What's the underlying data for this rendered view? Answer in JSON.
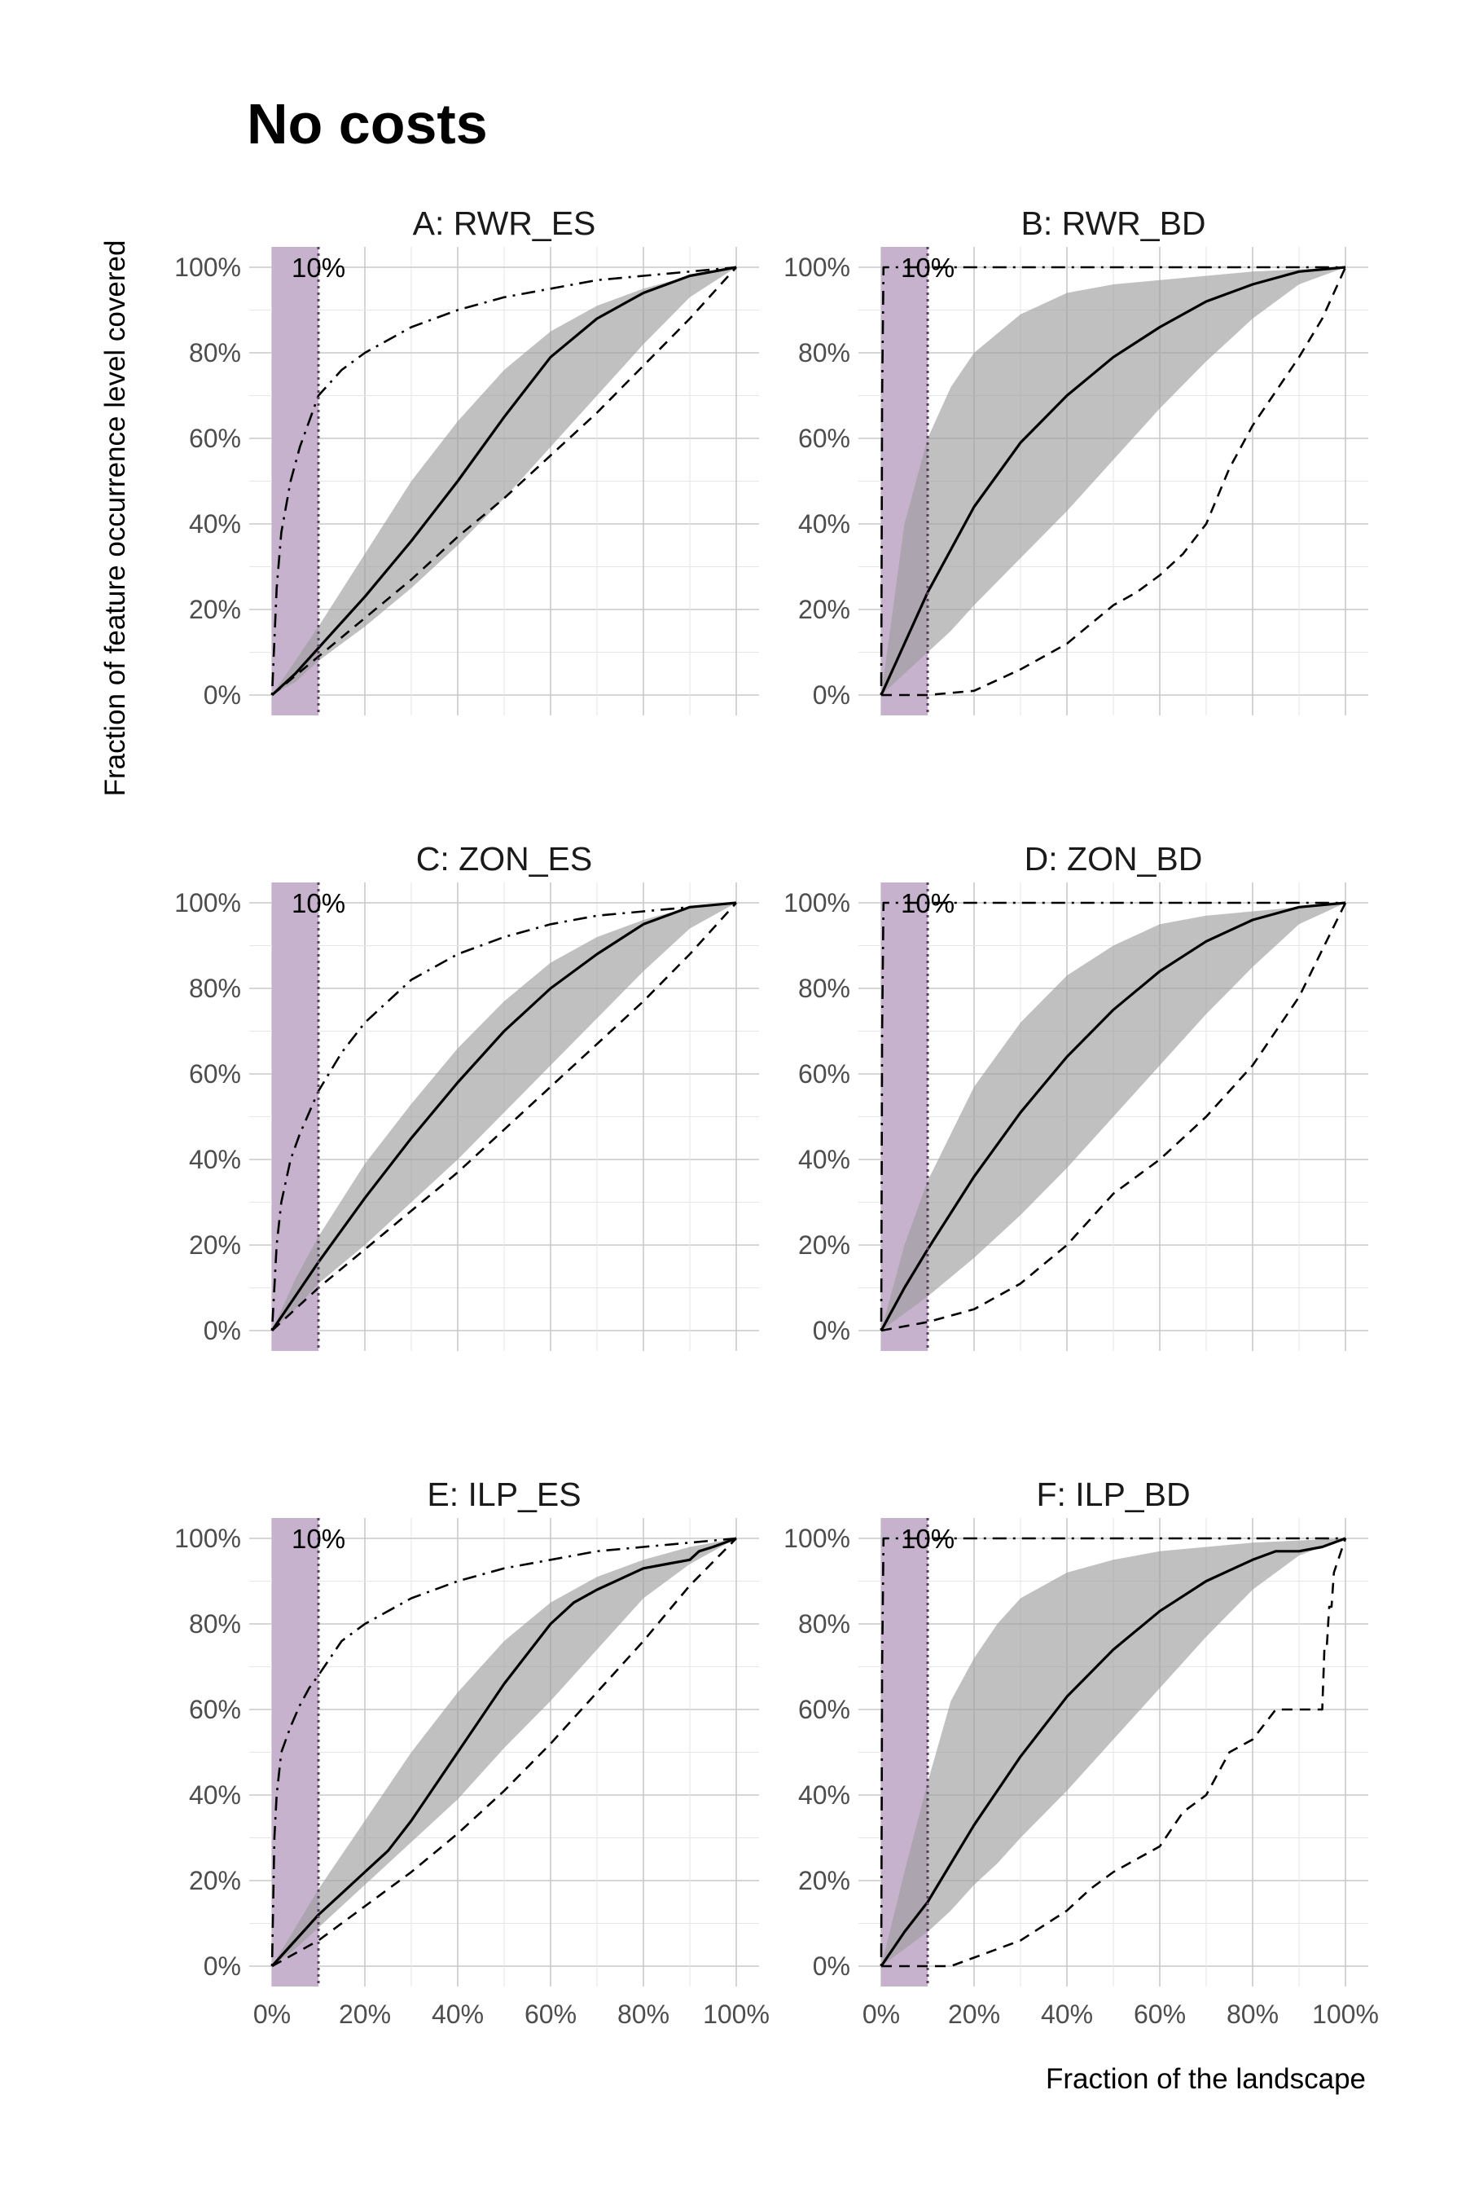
{
  "figure": {
    "title": "No costs",
    "xlabel": "Fraction of the landscape",
    "ylabel": "Fraction of feature occurrence level covered"
  },
  "chart_data": [
    {
      "type": "line",
      "title": "A: RWR_ES",
      "xlim": [
        0,
        100
      ],
      "ylim": [
        0,
        100
      ],
      "x_ticks": [
        "0%",
        "20%",
        "40%",
        "60%",
        "80%",
        "100%"
      ],
      "y_ticks": [
        "0%",
        "20%",
        "40%",
        "60%",
        "80%",
        "100%"
      ],
      "highlight": {
        "from": 0,
        "to": 10,
        "label": "10%"
      },
      "series": [
        {
          "style": "band",
          "x": [
            0,
            5,
            10,
            20,
            30,
            40,
            50,
            60,
            70,
            80,
            90,
            100
          ],
          "lower": [
            0,
            3,
            8,
            16,
            25,
            35,
            46,
            58,
            70,
            82,
            93,
            100
          ],
          "upper": [
            0,
            8,
            16,
            33,
            50,
            64,
            76,
            85,
            91,
            95,
            98,
            100
          ]
        },
        {
          "style": "solid",
          "x": [
            0,
            5,
            10,
            20,
            30,
            40,
            50,
            60,
            70,
            80,
            90,
            100
          ],
          "y": [
            0,
            5,
            11,
            23,
            36,
            50,
            65,
            79,
            88,
            94,
            98,
            100
          ]
        },
        {
          "style": "dashed",
          "x": [
            0,
            10,
            20,
            30,
            40,
            50,
            60,
            70,
            80,
            90,
            100
          ],
          "y": [
            0,
            9,
            18,
            27,
            37,
            46,
            56,
            66,
            77,
            88,
            100
          ]
        },
        {
          "style": "dotdash",
          "x": [
            0,
            1,
            2,
            4,
            6,
            8,
            10,
            15,
            20,
            30,
            40,
            50,
            60,
            70,
            80,
            90,
            100
          ],
          "y": [
            0,
            25,
            38,
            50,
            58,
            64,
            70,
            76,
            80,
            86,
            90,
            93,
            95,
            97,
            98,
            99,
            100
          ]
        }
      ]
    },
    {
      "type": "line",
      "title": "B: RWR_BD",
      "xlim": [
        0,
        100
      ],
      "ylim": [
        0,
        100
      ],
      "x_ticks": [
        "0%",
        "20%",
        "40%",
        "60%",
        "80%",
        "100%"
      ],
      "y_ticks": [
        "0%",
        "20%",
        "40%",
        "60%",
        "80%",
        "100%"
      ],
      "highlight": {
        "from": 0,
        "to": 10,
        "label": "10%"
      },
      "series": [
        {
          "style": "band",
          "x": [
            0,
            5,
            10,
            15,
            20,
            30,
            40,
            50,
            60,
            70,
            80,
            90,
            100
          ],
          "lower": [
            0,
            5,
            10,
            15,
            21,
            32,
            43,
            55,
            67,
            78,
            88,
            96,
            100
          ],
          "upper": [
            0,
            40,
            60,
            72,
            80,
            89,
            94,
            96,
            97,
            98,
            99,
            99.5,
            100
          ]
        },
        {
          "style": "solid",
          "x": [
            0,
            5,
            10,
            20,
            30,
            40,
            50,
            60,
            70,
            80,
            90,
            100
          ],
          "y": [
            0,
            12,
            24,
            44,
            59,
            70,
            79,
            86,
            92,
            96,
            99,
            100
          ]
        },
        {
          "style": "dashed",
          "x": [
            0,
            10,
            20,
            30,
            40,
            50,
            55,
            60,
            65,
            70,
            75,
            80,
            85,
            90,
            95,
            100
          ],
          "y": [
            0,
            0,
            1,
            6,
            12,
            21,
            24,
            28,
            33,
            40,
            53,
            63,
            71,
            79,
            88,
            100
          ]
        },
        {
          "style": "dotdash",
          "x": [
            0,
            0.2,
            0.5,
            100
          ],
          "y": [
            0,
            70,
            100,
            100
          ]
        }
      ]
    },
    {
      "type": "line",
      "title": "C: ZON_ES",
      "xlim": [
        0,
        100
      ],
      "ylim": [
        0,
        100
      ],
      "x_ticks": [
        "0%",
        "20%",
        "40%",
        "60%",
        "80%",
        "100%"
      ],
      "y_ticks": [
        "0%",
        "20%",
        "40%",
        "60%",
        "80%",
        "100%"
      ],
      "highlight": {
        "from": 0,
        "to": 10,
        "label": "10%"
      },
      "series": [
        {
          "style": "band",
          "x": [
            0,
            5,
            10,
            20,
            30,
            40,
            50,
            60,
            70,
            80,
            90,
            100
          ],
          "lower": [
            0,
            5,
            11,
            20,
            30,
            40,
            51,
            62,
            73,
            84,
            94,
            100
          ],
          "upper": [
            0,
            12,
            22,
            39,
            53,
            66,
            77,
            86,
            92,
            96,
            99,
            100
          ]
        },
        {
          "style": "solid",
          "x": [
            0,
            5,
            10,
            20,
            30,
            40,
            50,
            60,
            70,
            80,
            90,
            100
          ],
          "y": [
            0,
            8,
            16,
            31,
            45,
            58,
            70,
            80,
            88,
            95,
            99,
            100
          ]
        },
        {
          "style": "dashed",
          "x": [
            0,
            10,
            20,
            30,
            40,
            50,
            60,
            70,
            80,
            90,
            100
          ],
          "y": [
            0,
            10,
            19,
            28,
            37,
            47,
            57,
            67,
            77,
            88,
            100
          ]
        },
        {
          "style": "dotdash",
          "x": [
            0,
            1,
            2,
            4,
            6,
            8,
            10,
            15,
            20,
            30,
            40,
            50,
            60,
            70,
            80,
            90,
            100
          ],
          "y": [
            0,
            20,
            30,
            40,
            46,
            51,
            56,
            65,
            72,
            82,
            88,
            92,
            95,
            97,
            98,
            99,
            100
          ]
        }
      ]
    },
    {
      "type": "line",
      "title": "D: ZON_BD",
      "xlim": [
        0,
        100
      ],
      "ylim": [
        0,
        100
      ],
      "x_ticks": [
        "0%",
        "20%",
        "40%",
        "60%",
        "80%",
        "100%"
      ],
      "y_ticks": [
        "0%",
        "20%",
        "40%",
        "60%",
        "80%",
        "100%"
      ],
      "highlight": {
        "from": 0,
        "to": 10,
        "label": "10%"
      },
      "series": [
        {
          "style": "band",
          "x": [
            0,
            5,
            10,
            20,
            30,
            40,
            50,
            60,
            70,
            80,
            90,
            100
          ],
          "lower": [
            0,
            4,
            8,
            17,
            27,
            38,
            50,
            62,
            74,
            85,
            95,
            100
          ],
          "upper": [
            0,
            20,
            35,
            57,
            72,
            83,
            90,
            95,
            97,
            98,
            99,
            100
          ]
        },
        {
          "style": "solid",
          "x": [
            0,
            5,
            10,
            20,
            30,
            40,
            50,
            60,
            70,
            80,
            90,
            100
          ],
          "y": [
            0,
            10,
            19,
            36,
            51,
            64,
            75,
            84,
            91,
            96,
            99,
            100
          ]
        },
        {
          "style": "dashed",
          "x": [
            0,
            10,
            20,
            30,
            40,
            50,
            55,
            60,
            70,
            80,
            90,
            100
          ],
          "y": [
            0,
            2,
            5,
            11,
            20,
            32,
            36,
            40,
            50,
            62,
            78,
            100
          ]
        },
        {
          "style": "dotdash",
          "x": [
            0,
            0.2,
            0.5,
            100
          ],
          "y": [
            0,
            70,
            100,
            100
          ]
        }
      ]
    },
    {
      "type": "line",
      "title": "E: ILP_ES",
      "xlim": [
        0,
        100
      ],
      "ylim": [
        0,
        100
      ],
      "x_ticks": [
        "0%",
        "20%",
        "40%",
        "60%",
        "80%",
        "100%"
      ],
      "y_ticks": [
        "0%",
        "20%",
        "40%",
        "60%",
        "80%",
        "100%"
      ],
      "highlight": {
        "from": 0,
        "to": 10,
        "label": "10%"
      },
      "series": [
        {
          "style": "band",
          "x": [
            0,
            5,
            10,
            20,
            30,
            40,
            50,
            60,
            70,
            80,
            90,
            100
          ],
          "lower": [
            0,
            4,
            9,
            19,
            29,
            39,
            51,
            62,
            74,
            86,
            94,
            100
          ],
          "upper": [
            0,
            9,
            18,
            34,
            50,
            64,
            76,
            85,
            91,
            95,
            98,
            100
          ]
        },
        {
          "style": "solid",
          "x": [
            0,
            5,
            10,
            15,
            20,
            25,
            30,
            40,
            50,
            60,
            65,
            70,
            80,
            85,
            90,
            92,
            95,
            100
          ],
          "y": [
            0,
            6,
            12,
            17,
            22,
            27,
            34,
            50,
            66,
            80,
            85,
            88,
            93,
            94,
            95,
            97,
            98,
            100
          ]
        },
        {
          "style": "dashed",
          "x": [
            0,
            10,
            20,
            30,
            40,
            50,
            60,
            70,
            80,
            90,
            100
          ],
          "y": [
            0,
            6,
            14,
            22,
            31,
            41,
            52,
            64,
            76,
            89,
            100
          ]
        },
        {
          "style": "dotdash",
          "x": [
            0,
            0.5,
            1,
            2,
            4,
            6,
            8,
            10,
            15,
            20,
            30,
            40,
            50,
            60,
            70,
            80,
            90,
            100
          ],
          "y": [
            0,
            30,
            40,
            50,
            56,
            61,
            65,
            68,
            76,
            80,
            86,
            90,
            93,
            95,
            97,
            98,
            99,
            100
          ]
        }
      ]
    },
    {
      "type": "line",
      "title": "F: ILP_BD",
      "xlim": [
        0,
        100
      ],
      "ylim": [
        0,
        100
      ],
      "x_ticks": [
        "0%",
        "20%",
        "40%",
        "60%",
        "80%",
        "100%"
      ],
      "y_ticks": [
        "0%",
        "20%",
        "40%",
        "60%",
        "80%",
        "100%"
      ],
      "highlight": {
        "from": 0,
        "to": 10,
        "label": "10%"
      },
      "series": [
        {
          "style": "band",
          "x": [
            0,
            5,
            10,
            15,
            20,
            25,
            30,
            40,
            50,
            60,
            70,
            80,
            90,
            100
          ],
          "lower": [
            0,
            4,
            8,
            13,
            19,
            24,
            30,
            41,
            53,
            65,
            77,
            88,
            96,
            100
          ],
          "upper": [
            0,
            22,
            43,
            62,
            72,
            80,
            86,
            92,
            95,
            97,
            98,
            99,
            99.5,
            100
          ]
        },
        {
          "style": "solid",
          "x": [
            0,
            5,
            10,
            15,
            20,
            30,
            40,
            50,
            60,
            70,
            80,
            85,
            90,
            95,
            100
          ],
          "y": [
            0,
            8,
            15,
            24,
            33,
            49,
            63,
            74,
            83,
            90,
            95,
            97,
            97,
            98,
            100
          ]
        },
        {
          "style": "dashed",
          "x": [
            0,
            10,
            15,
            20,
            30,
            40,
            45,
            50,
            60,
            65,
            70,
            75,
            80,
            85,
            86,
            95,
            95.5,
            96,
            96.5,
            97,
            97.5,
            100
          ],
          "y": [
            0,
            0,
            0,
            2,
            6,
            13,
            18,
            22,
            28,
            36,
            40,
            50,
            53,
            60,
            60,
            60,
            75,
            75,
            84,
            84,
            92,
            100
          ]
        },
        {
          "style": "dotdash",
          "x": [
            0,
            0.2,
            0.5,
            100
          ],
          "y": [
            0,
            70,
            100,
            100
          ]
        }
      ]
    }
  ]
}
